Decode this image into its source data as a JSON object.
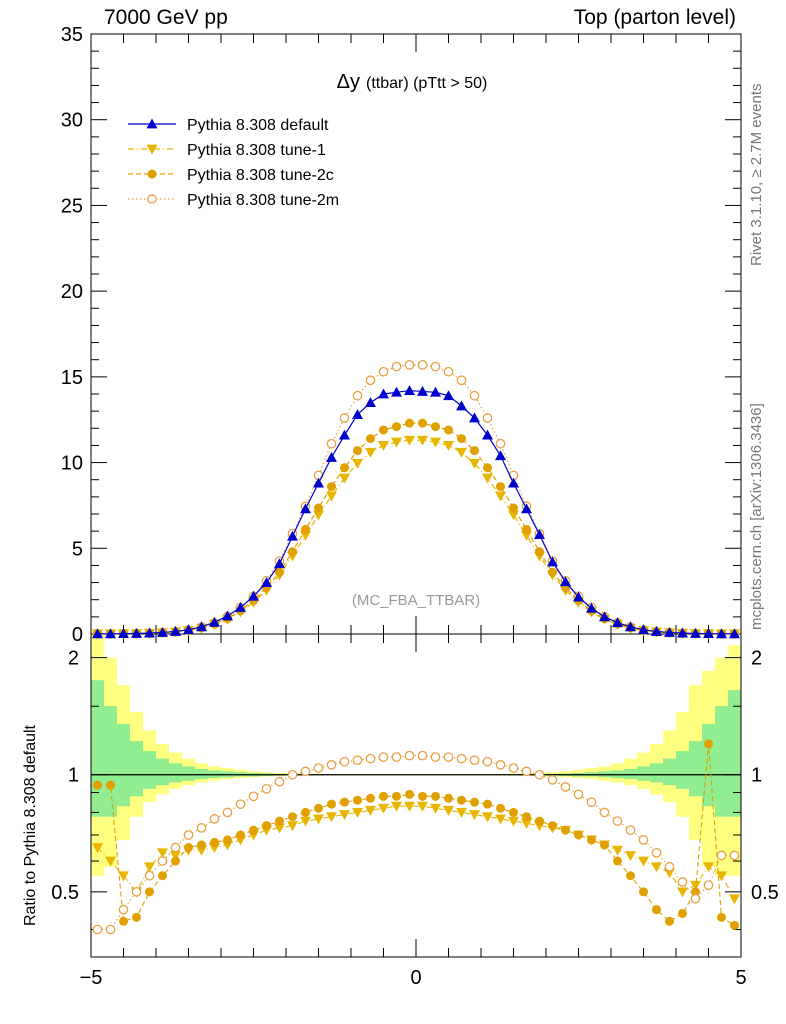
{
  "header": {
    "left": "7000 GeV pp",
    "right": "Top (parton level)"
  },
  "side_labels": {
    "rivet": "Rivet 3.1.10, ≥ 2.7M events",
    "mcplots": "mcplots.cern.ch [arXiv:1306.3436]"
  },
  "chart_data": [
    {
      "type": "line",
      "title_main": "Δy",
      "title_sub": "(ttbar) (pTtt > 50)",
      "watermark": "(MC_FBA_TTBAR)",
      "xlim": [
        -5,
        5
      ],
      "ylim": [
        0,
        35
      ],
      "yticks": [
        0,
        5,
        10,
        15,
        20,
        25,
        30,
        35
      ],
      "ytick_labels": [
        "0",
        "5",
        "10",
        "15",
        "20",
        "25",
        "30",
        "35"
      ],
      "x": [
        -4.9,
        -4.7,
        -4.5,
        -4.3,
        -4.1,
        -3.9,
        -3.7,
        -3.5,
        -3.3,
        -3.1,
        -2.9,
        -2.7,
        -2.5,
        -2.3,
        -2.1,
        -1.9,
        -1.7,
        -1.5,
        -1.3,
        -1.1,
        -0.9,
        -0.7,
        -0.5,
        -0.3,
        -0.1,
        0.1,
        0.3,
        0.5,
        0.7,
        0.9,
        1.1,
        1.3,
        1.5,
        1.7,
        1.9,
        2.1,
        2.3,
        2.5,
        2.7,
        2.9,
        3.1,
        3.3,
        3.5,
        3.7,
        3.9,
        4.1,
        4.3,
        4.5,
        4.7,
        4.9
      ],
      "series": [
        {
          "name": "Pythia 8.308 default",
          "color": "#0000cc",
          "marker": "triangle-up",
          "dash": "solid",
          "values": [
            0.01,
            0.01,
            0.02,
            0.03,
            0.05,
            0.09,
            0.15,
            0.25,
            0.42,
            0.68,
            1.05,
            1.55,
            2.2,
            3.0,
            4.1,
            5.7,
            7.3,
            8.8,
            10.3,
            11.6,
            12.8,
            13.5,
            14.0,
            14.1,
            14.2,
            14.15,
            14.1,
            13.9,
            13.3,
            12.6,
            11.6,
            10.4,
            8.8,
            7.3,
            5.8,
            4.2,
            3.05,
            2.15,
            1.5,
            1.0,
            0.66,
            0.42,
            0.25,
            0.15,
            0.09,
            0.05,
            0.03,
            0.02,
            0.01,
            0.01
          ]
        },
        {
          "name": "Pythia 8.308 tune-1",
          "color": "#e8b600",
          "marker": "triangle-down",
          "dash": "dashdot",
          "values": [
            0.01,
            0.01,
            0.02,
            0.03,
            0.04,
            0.07,
            0.12,
            0.2,
            0.34,
            0.55,
            0.85,
            1.28,
            1.85,
            2.55,
            3.45,
            4.55,
            5.75,
            6.95,
            8.05,
            9.1,
            9.95,
            10.6,
            11.0,
            11.2,
            11.3,
            11.3,
            11.2,
            11.0,
            10.6,
            9.95,
            9.1,
            8.05,
            6.95,
            5.75,
            4.55,
            3.45,
            2.55,
            1.85,
            1.28,
            0.85,
            0.55,
            0.34,
            0.2,
            0.12,
            0.07,
            0.04,
            0.03,
            0.02,
            0.01,
            0.01
          ]
        },
        {
          "name": "Pythia 8.308 tune-2c",
          "color": "#e0a000",
          "marker": "circle-filled",
          "dash": "dashed",
          "values": [
            0.01,
            0.01,
            0.02,
            0.03,
            0.04,
            0.08,
            0.13,
            0.21,
            0.36,
            0.58,
            0.9,
            1.35,
            1.95,
            2.7,
            3.6,
            4.8,
            6.1,
            7.35,
            8.6,
            9.7,
            10.7,
            11.4,
            11.9,
            12.1,
            12.3,
            12.3,
            12.1,
            11.9,
            11.4,
            10.7,
            9.7,
            8.6,
            7.35,
            6.1,
            4.8,
            3.6,
            2.7,
            1.95,
            1.35,
            0.9,
            0.58,
            0.36,
            0.21,
            0.13,
            0.08,
            0.04,
            0.03,
            0.02,
            0.01,
            0.01
          ]
        },
        {
          "name": "Pythia 8.308 tune-2m",
          "color": "#e8a040",
          "marker": "circle-open",
          "dash": "dotted",
          "values": [
            0.01,
            0.01,
            0.02,
            0.03,
            0.05,
            0.08,
            0.13,
            0.23,
            0.4,
            0.65,
            1.02,
            1.55,
            2.2,
            3.1,
            4.25,
            5.85,
            7.45,
            9.25,
            11.1,
            12.6,
            13.9,
            14.8,
            15.3,
            15.6,
            15.7,
            15.7,
            15.6,
            15.3,
            14.8,
            13.9,
            12.6,
            11.1,
            9.25,
            7.45,
            5.85,
            4.25,
            3.1,
            2.2,
            1.55,
            1.02,
            0.65,
            0.4,
            0.23,
            0.13,
            0.08,
            0.05,
            0.03,
            0.02,
            0.01,
            0.01
          ]
        }
      ]
    },
    {
      "type": "line",
      "ylabel": "Ratio to Pythia 8.308 default",
      "xlim": [
        -5,
        5
      ],
      "ylim": [
        0.34,
        2.3
      ],
      "yscale": "log",
      "yticks": [
        0.5,
        1,
        2
      ],
      "ytick_labels": [
        "0.5",
        "1",
        "2"
      ],
      "xticks": [
        -5,
        0,
        5
      ],
      "xtick_labels": [
        "−5",
        "0",
        "5"
      ],
      "reference_line": 1,
      "band_inner_color": "#90ee90",
      "band_outer_color": "#ffff80",
      "band_inner": [
        0.78,
        0.78,
        0.83,
        0.88,
        0.92,
        0.94,
        0.955,
        0.965,
        0.975,
        0.98,
        0.985,
        0.99,
        0.99,
        0.993,
        0.995,
        0.996,
        0.997,
        0.997,
        0.998,
        0.998,
        0.998,
        0.998,
        0.998,
        0.998,
        0.998,
        0.998,
        0.998,
        0.998,
        0.998,
        0.998,
        0.998,
        0.998,
        0.997,
        0.997,
        0.996,
        0.995,
        0.993,
        0.99,
        0.99,
        0.985,
        0.98,
        0.975,
        0.965,
        0.955,
        0.94,
        0.92,
        0.88,
        0.83,
        0.78,
        0.78
      ],
      "band_outer": [
        0.55,
        0.58,
        0.68,
        0.78,
        0.85,
        0.89,
        0.92,
        0.94,
        0.955,
        0.965,
        0.975,
        0.98,
        0.985,
        0.99,
        0.993,
        0.994,
        0.995,
        0.996,
        0.997,
        0.997,
        0.997,
        0.997,
        0.997,
        0.997,
        0.997,
        0.997,
        0.997,
        0.997,
        0.997,
        0.997,
        0.997,
        0.996,
        0.995,
        0.994,
        0.993,
        0.99,
        0.985,
        0.98,
        0.975,
        0.965,
        0.955,
        0.94,
        0.92,
        0.89,
        0.85,
        0.78,
        0.68,
        0.58,
        0.55,
        0.55
      ],
      "band_inner_hi": [
        1.75,
        1.5,
        1.35,
        1.22,
        1.15,
        1.1,
        1.07,
        1.05,
        1.035,
        1.025,
        1.02,
        1.015,
        1.01,
        1.007,
        1.005,
        1.004,
        1.003,
        1.003,
        1.002,
        1.002,
        1.002,
        1.002,
        1.002,
        1.002,
        1.002,
        1.002,
        1.002,
        1.002,
        1.002,
        1.002,
        1.002,
        1.002,
        1.003,
        1.003,
        1.004,
        1.005,
        1.007,
        1.01,
        1.015,
        1.02,
        1.025,
        1.035,
        1.05,
        1.07,
        1.1,
        1.15,
        1.22,
        1.35,
        1.5,
        1.65
      ],
      "band_outer_hi": [
        2.3,
        2.0,
        1.7,
        1.45,
        1.3,
        1.2,
        1.14,
        1.1,
        1.07,
        1.05,
        1.04,
        1.03,
        1.02,
        1.015,
        1.01,
        1.008,
        1.006,
        1.005,
        1.004,
        1.004,
        1.004,
        1.004,
        1.004,
        1.004,
        1.004,
        1.004,
        1.004,
        1.004,
        1.004,
        1.004,
        1.004,
        1.005,
        1.006,
        1.008,
        1.01,
        1.015,
        1.02,
        1.03,
        1.04,
        1.05,
        1.07,
        1.1,
        1.14,
        1.2,
        1.3,
        1.45,
        1.7,
        1.85,
        2.0,
        2.15
      ],
      "series": [
        {
          "name": "Pythia 8.308 tune-1",
          "values": [
            0.65,
            0.6,
            0.55,
            0.5,
            0.58,
            0.63,
            0.62,
            0.64,
            0.64,
            0.65,
            0.66,
            0.68,
            0.7,
            0.72,
            0.73,
            0.74,
            0.76,
            0.77,
            0.78,
            0.79,
            0.8,
            0.81,
            0.82,
            0.83,
            0.83,
            0.83,
            0.82,
            0.81,
            0.8,
            0.79,
            0.78,
            0.77,
            0.76,
            0.75,
            0.74,
            0.73,
            0.72,
            0.7,
            0.68,
            0.66,
            0.64,
            0.62,
            0.6,
            0.58,
            0.56,
            0.5,
            0.52,
            0.58,
            0.55,
            0.48
          ]
        },
        {
          "name": "Pythia 8.308 tune-2c",
          "values": [
            0.94,
            0.94,
            0.42,
            0.43,
            0.5,
            0.55,
            0.6,
            0.65,
            0.66,
            0.67,
            0.68,
            0.7,
            0.72,
            0.74,
            0.76,
            0.78,
            0.8,
            0.82,
            0.84,
            0.85,
            0.86,
            0.87,
            0.88,
            0.88,
            0.89,
            0.88,
            0.88,
            0.87,
            0.86,
            0.85,
            0.84,
            0.82,
            0.8,
            0.78,
            0.76,
            0.74,
            0.72,
            0.7,
            0.68,
            0.66,
            0.6,
            0.55,
            0.5,
            0.45,
            0.42,
            0.44,
            0.5,
            1.2,
            0.43,
            0.41
          ]
        },
        {
          "name": "Pythia 8.308 tune-2m",
          "values": [
            0.4,
            0.4,
            0.45,
            0.5,
            0.55,
            0.6,
            0.65,
            0.7,
            0.73,
            0.77,
            0.8,
            0.84,
            0.88,
            0.92,
            0.96,
            1.0,
            1.02,
            1.04,
            1.06,
            1.08,
            1.09,
            1.1,
            1.11,
            1.11,
            1.12,
            1.12,
            1.11,
            1.11,
            1.1,
            1.09,
            1.08,
            1.06,
            1.04,
            1.02,
            1.0,
            0.97,
            0.93,
            0.89,
            0.85,
            0.8,
            0.76,
            0.72,
            0.68,
            0.63,
            0.58,
            0.53,
            0.48,
            0.52,
            0.62,
            0.62
          ]
        }
      ]
    }
  ]
}
